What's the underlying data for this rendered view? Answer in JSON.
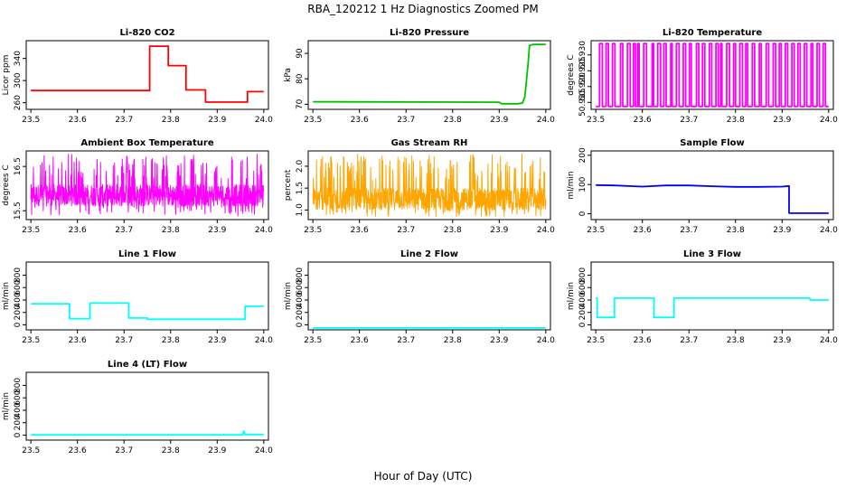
{
  "figure": {
    "title": "RBA_120212  1 Hz Diagnostics Zoomed PM",
    "xlabel": "Hour of Day (UTC)"
  },
  "chart_data": [
    {
      "type": "line",
      "id": "co2",
      "title": "Li-820 CO2",
      "ylabel": "Licor ppm",
      "color": "#ff0000",
      "xlim": [
        23.49,
        24.01
      ],
      "ylim": [
        248,
        372
      ],
      "xticks": [
        23.5,
        23.6,
        23.7,
        23.8,
        23.9,
        24.0
      ],
      "xtick_labels": [
        "23.5",
        "23.6",
        "23.7",
        "23.8",
        "23.9",
        "24.0"
      ],
      "yticks": [
        260,
        300,
        340
      ],
      "ytick_labels": [
        "260",
        "300",
        "340"
      ],
      "x": [
        23.5,
        23.755,
        23.755,
        23.795,
        23.795,
        23.833,
        23.833,
        23.875,
        23.875,
        23.965,
        23.965,
        24.0
      ],
      "y": [
        282,
        282,
        362,
        362,
        327,
        327,
        283,
        283,
        261,
        261,
        280,
        280
      ]
    },
    {
      "type": "line",
      "id": "pressure",
      "title": "Li-820 Pressure",
      "ylabel": "kPa",
      "color": "#00c000",
      "xlim": [
        23.49,
        24.01
      ],
      "ylim": [
        68,
        95
      ],
      "xticks": [
        23.5,
        23.6,
        23.7,
        23.8,
        23.9,
        24.0
      ],
      "xtick_labels": [
        "23.5",
        "23.6",
        "23.7",
        "23.8",
        "23.9",
        "24.0"
      ],
      "yticks": [
        70,
        80,
        90
      ],
      "ytick_labels": [
        "70",
        "80",
        "90"
      ],
      "x": [
        23.5,
        23.9,
        23.905,
        23.94,
        23.95,
        23.955,
        23.96,
        23.962,
        23.965,
        23.972,
        24.0
      ],
      "y": [
        71,
        70.8,
        70.2,
        70.2,
        70.5,
        73,
        82,
        86,
        93,
        93.5,
        93.5
      ]
    },
    {
      "type": "line",
      "id": "temperature",
      "title": "Li-820 Temperature",
      "ylabel": "degrees C",
      "color": "#ff00ff",
      "xlim": [
        23.49,
        24.01
      ],
      "ylim": [
        50.9128,
        50.9345
      ],
      "xticks": [
        23.5,
        23.6,
        23.7,
        23.8,
        23.9,
        24.0
      ],
      "xtick_labels": [
        "23.5",
        "23.6",
        "23.7",
        "23.8",
        "23.9",
        "24.0"
      ],
      "yticks": [
        50.915,
        50.92,
        50.925,
        50.93
      ],
      "ytick_labels": [
        "50.915",
        "50.920",
        "50.925",
        "50.930"
      ],
      "low": 50.9137,
      "high": 50.9336,
      "toggle_x": [
        23.508,
        23.514,
        23.522,
        23.527,
        23.536,
        23.541,
        23.553,
        23.558,
        23.568,
        23.574,
        23.581,
        23.585,
        23.59,
        23.593,
        23.603,
        23.609,
        23.621,
        23.624,
        23.633,
        23.639,
        23.646,
        23.651,
        23.661,
        23.664,
        23.673,
        23.679,
        23.688,
        23.693,
        23.701,
        23.705,
        23.716,
        23.721,
        23.729,
        23.734,
        23.744,
        23.749,
        23.758,
        23.763,
        23.768,
        23.771,
        23.781,
        23.787,
        23.796,
        23.8,
        23.809,
        23.815,
        23.822,
        23.826,
        23.836,
        23.841,
        23.851,
        23.855,
        23.866,
        23.871,
        23.881,
        23.886,
        23.894,
        23.898,
        23.907,
        23.912,
        23.921,
        23.926,
        23.934,
        23.939,
        23.948,
        23.953,
        23.962,
        23.966,
        23.975,
        23.98,
        23.988,
        23.993
      ]
    },
    {
      "type": "line",
      "id": "ambient",
      "title": "Ambient Box Temperature",
      "ylabel": "degrees C",
      "color": "#ff00ff",
      "xlim": [
        23.49,
        24.01
      ],
      "ylim": [
        15.3,
        16.85
      ],
      "xticks": [
        23.5,
        23.6,
        23.7,
        23.8,
        23.9,
        24.0
      ],
      "xtick_labels": [
        "23.5",
        "23.6",
        "23.7",
        "23.8",
        "23.9",
        "24.0"
      ],
      "yticks": [
        15.5,
        16.5
      ],
      "ytick_labels": [
        "15.5",
        "16.5"
      ],
      "noise_mean": 15.85,
      "noise_range": [
        15.38,
        16.78
      ]
    },
    {
      "type": "line",
      "id": "rh",
      "title": "Gas Stream RH",
      "ylabel": "percent",
      "color": "#ffa500",
      "xlim": [
        23.49,
        24.01
      ],
      "ylim": [
        0.78,
        2.35
      ],
      "xticks": [
        23.5,
        23.6,
        23.7,
        23.8,
        23.9,
        24.0
      ],
      "xtick_labels": [
        "23.5",
        "23.6",
        "23.7",
        "23.8",
        "23.9",
        "24.0"
      ],
      "yticks": [
        1.0,
        1.5,
        2.0
      ],
      "ytick_labels": [
        "1.0",
        "1.5",
        "2.0"
      ],
      "noise_mean": 1.25,
      "noise_range": [
        0.85,
        2.3
      ]
    },
    {
      "type": "line",
      "id": "sample",
      "title": "Sample Flow",
      "ylabel": "ml/min",
      "color": "#0000ff",
      "xlim": [
        23.49,
        24.01
      ],
      "ylim": [
        -20,
        215
      ],
      "xticks": [
        23.5,
        23.6,
        23.7,
        23.8,
        23.9,
        24.0
      ],
      "xtick_labels": [
        "23.5",
        "23.6",
        "23.7",
        "23.8",
        "23.9",
        "24.0"
      ],
      "yticks": [
        0,
        100,
        200
      ],
      "ytick_labels": [
        "0",
        "100",
        "200"
      ],
      "x": [
        23.5,
        23.54,
        23.6,
        23.65,
        23.7,
        23.75,
        23.8,
        23.85,
        23.9,
        23.915,
        23.915,
        24.0
      ],
      "y": [
        98,
        97,
        93,
        97,
        97,
        94,
        92,
        92,
        93,
        95,
        2,
        2
      ]
    },
    {
      "type": "line",
      "id": "line1",
      "title": "Line 1 Flow",
      "ylabel": "ml/min",
      "color": "#00ffff",
      "xlim": [
        23.49,
        24.01
      ],
      "ylim": [
        -80,
        1010
      ],
      "xticks": [
        23.5,
        23.6,
        23.7,
        23.8,
        23.9,
        24.0
      ],
      "xtick_labels": [
        "23.5",
        "23.6",
        "23.7",
        "23.8",
        "23.9",
        "24.0"
      ],
      "yticks": [
        0,
        200,
        400,
        600,
        800
      ],
      "ytick_labels": [
        "0",
        "200",
        "400",
        "600",
        "800"
      ],
      "x": [
        23.5,
        23.583,
        23.583,
        23.627,
        23.627,
        23.71,
        23.71,
        23.75,
        23.75,
        23.96,
        23.96,
        24.0
      ],
      "y": [
        340,
        340,
        100,
        100,
        350,
        350,
        110,
        110,
        90,
        90,
        300,
        300
      ]
    },
    {
      "type": "line",
      "id": "line2",
      "title": "Line 2 Flow",
      "ylabel": "ml/min",
      "color": "#00ffff",
      "xlim": [
        23.49,
        24.01
      ],
      "ylim": [
        -80,
        1010
      ],
      "xticks": [
        23.5,
        23.6,
        23.7,
        23.8,
        23.9,
        24.0
      ],
      "xtick_labels": [
        "23.5",
        "23.6",
        "23.7",
        "23.8",
        "23.9",
        "24.0"
      ],
      "yticks": [
        0,
        200,
        400,
        600,
        800
      ],
      "ytick_labels": [
        "0",
        "200",
        "400",
        "600",
        "800"
      ],
      "x": [
        23.5,
        24.0
      ],
      "y": [
        -50,
        -50
      ]
    },
    {
      "type": "line",
      "id": "line3",
      "title": "Line 3 Flow",
      "ylabel": "ml/min",
      "color": "#00ffff",
      "xlim": [
        23.49,
        24.01
      ],
      "ylim": [
        -80,
        1010
      ],
      "xticks": [
        23.5,
        23.6,
        23.7,
        23.8,
        23.9,
        24.0
      ],
      "xtick_labels": [
        "23.5",
        "23.6",
        "23.7",
        "23.8",
        "23.9",
        "24.0"
      ],
      "yticks": [
        0,
        200,
        400,
        600,
        800
      ],
      "ytick_labels": [
        "0",
        "200",
        "400",
        "600",
        "800"
      ],
      "x": [
        23.5,
        23.503,
        23.503,
        23.54,
        23.54,
        23.625,
        23.625,
        23.668,
        23.668,
        23.96,
        23.96,
        24.0
      ],
      "y": [
        430,
        430,
        120,
        120,
        430,
        430,
        120,
        120,
        430,
        430,
        400,
        400
      ]
    },
    {
      "type": "line",
      "id": "line4",
      "title": "Line 4 (LT) Flow",
      "ylabel": "ml/min",
      "color": "#00ffff",
      "xlim": [
        23.49,
        24.01
      ],
      "ylim": [
        -80,
        1010
      ],
      "xticks": [
        23.5,
        23.6,
        23.7,
        23.8,
        23.9,
        24.0
      ],
      "xtick_labels": [
        "23.5",
        "23.6",
        "23.7",
        "23.8",
        "23.9",
        "24.0"
      ],
      "yticks": [
        0,
        200,
        400,
        600,
        800
      ],
      "ytick_labels": [
        "0",
        "200",
        "400",
        "600",
        "800"
      ],
      "x": [
        23.5,
        23.955,
        23.957,
        23.96,
        24.0
      ],
      "y": [
        5,
        5,
        65,
        10,
        10
      ]
    }
  ]
}
